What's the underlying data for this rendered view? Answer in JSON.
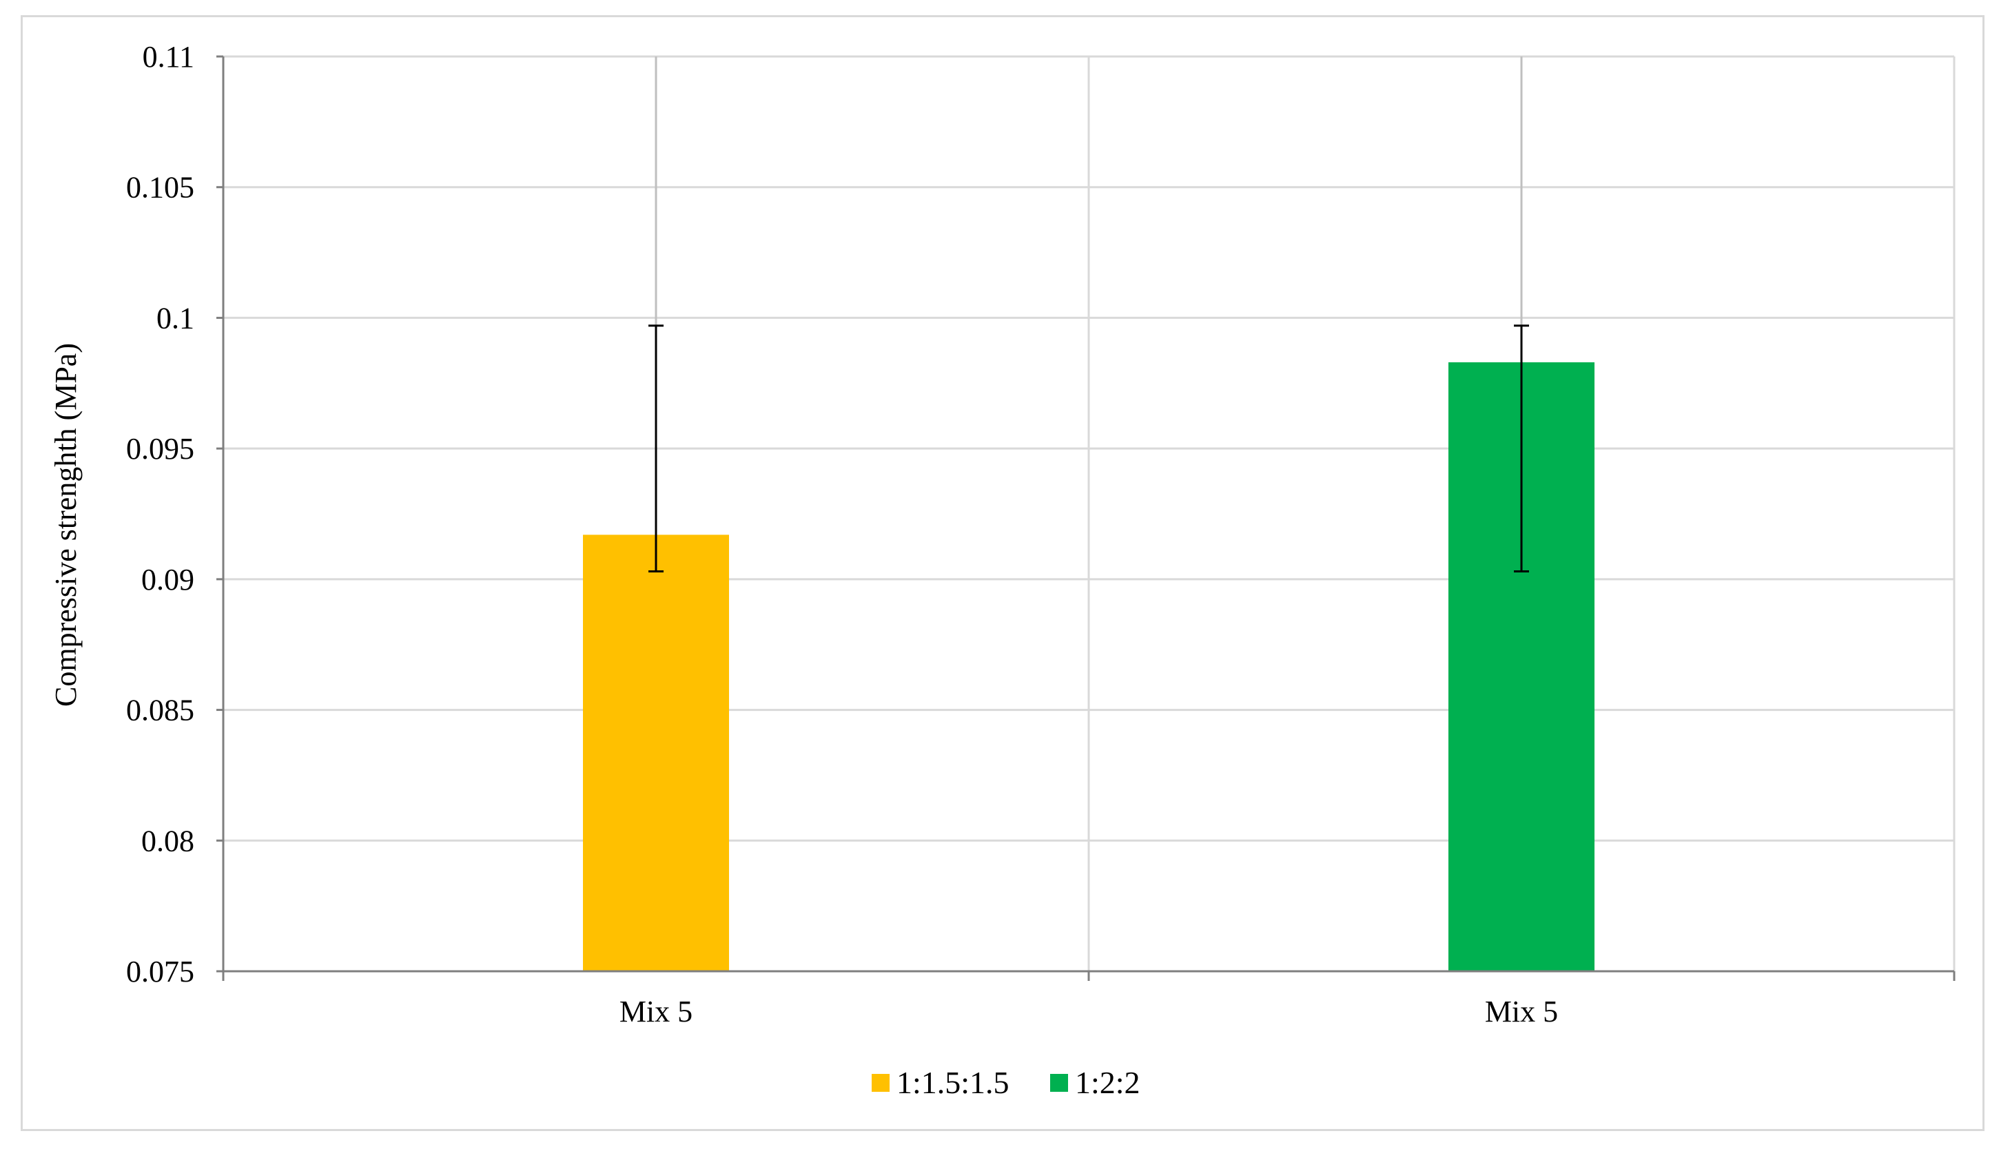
{
  "chart_data": {
    "type": "bar",
    "categories": [
      "Mix 5",
      "Mix 5"
    ],
    "series": [
      {
        "name": "1:1.5:1.5",
        "values": [
          0.0917,
          null
        ],
        "error_low": [
          0.0903,
          null
        ],
        "error_high": [
          0.0997,
          null
        ],
        "color": "#ffc000"
      },
      {
        "name": "1:2:2",
        "values": [
          null,
          0.0983
        ],
        "error_low": [
          null,
          0.0903
        ],
        "error_high": [
          null,
          0.0997
        ],
        "color": "#00b050"
      }
    ],
    "title": "",
    "xlabel": "",
    "ylabel": "Compressive strenghth (MPa)",
    "ylim": [
      0.075,
      0.11
    ],
    "yticks": [
      "0.075",
      "0.08",
      "0.085",
      "0.09",
      "0.095",
      "0.1",
      "0.105",
      "0.11"
    ],
    "grid": true,
    "legend": "bottom"
  }
}
